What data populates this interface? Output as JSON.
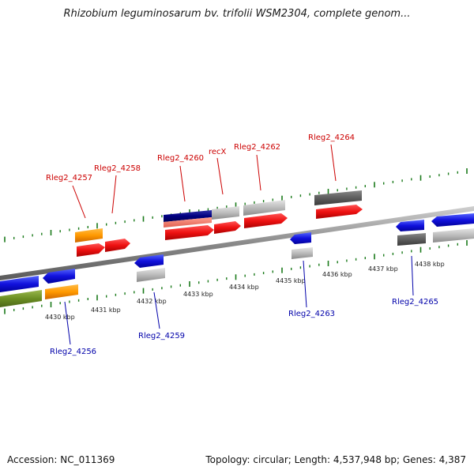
{
  "title": "Rhizobium leguminosarum bv. trifolii WSM2304, complete genom...",
  "footer": {
    "accession": "Accession: NC_011369",
    "genome_info": "Topology: circular; Length: 4,537,948 bp; Genes: 4,387"
  },
  "axis_labels": [
    "4430 kbp",
    "4431 kbp",
    "4432 kbp",
    "4433 kbp",
    "4434 kbp",
    "4435 kbp",
    "4436 kbp",
    "4437 kbp",
    "4438 kbp"
  ],
  "gene_labels": {
    "forward": [
      "Rleg2_4257",
      "Rleg2_4258",
      "Rleg2_4260",
      "recX",
      "Rleg2_4262",
      "Rleg2_4264"
    ],
    "reverse": [
      "Rleg2_4256",
      "Rleg2_4259",
      "Rleg2_4263",
      "Rleg2_4265"
    ]
  },
  "colors": {
    "forward_label": "#cc0000",
    "reverse_label": "#0000aa",
    "tick": "#1a7a1a",
    "cds_forward": "#ee1111",
    "cds_reverse": "#1111dd",
    "gene_orange": "#ff9900",
    "gene_gray": "#bbbbbb",
    "gene_darkgray": "#666666",
    "gene_olive": "#6b8e23",
    "gene_navy": "#000080",
    "backbone": "#888888"
  }
}
